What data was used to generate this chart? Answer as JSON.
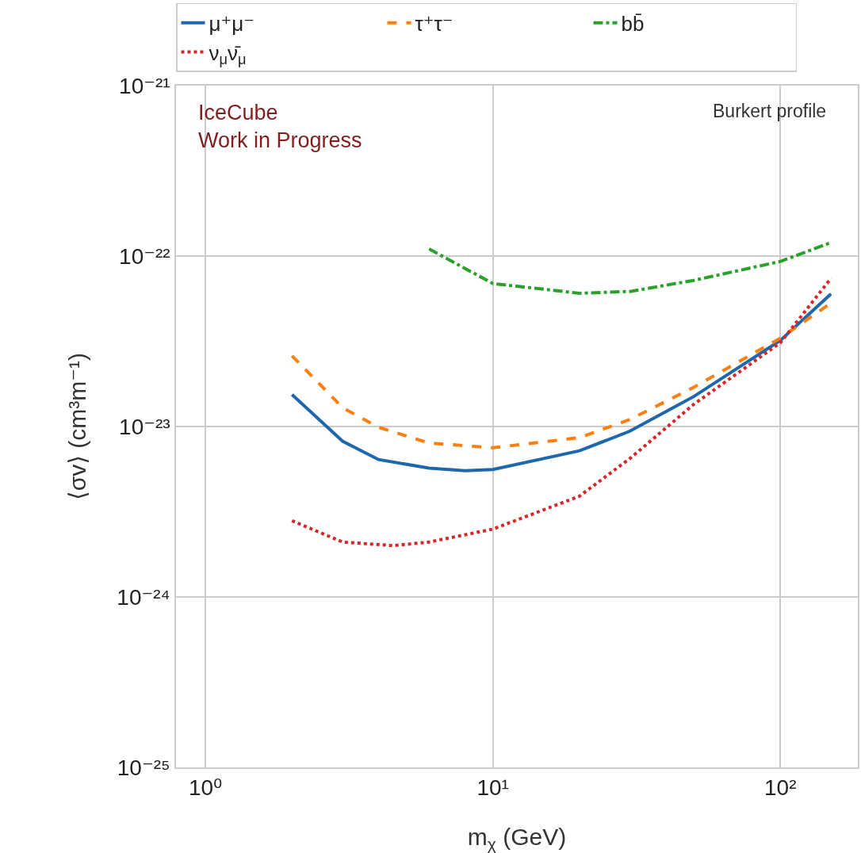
{
  "chart_data": {
    "type": "line",
    "xlabel": "m$_{χ}$ (GeV)",
    "ylabel": "⟨σv⟩ (cm³m⁻¹)",
    "annotations": [
      "IceCube\nWork in Progress",
      "Burkert profile"
    ],
    "log": "xy",
    "grid": true,
    "legend": "top",
    "marker": "none",
    "xlim": [
      0.79,
      186
    ],
    "xticks": [
      {
        "value": 1,
        "label": "10⁰"
      },
      {
        "value": 10,
        "label": "10¹"
      },
      {
        "value": 100,
        "label": "10²"
      }
    ],
    "ylim": [
      1e-25,
      1e-21
    ],
    "yticks": [
      {
        "value": 1e-25,
        "label": "10⁻²⁵"
      },
      {
        "value": 1e-24,
        "label": "10⁻²⁴"
      },
      {
        "value": 1e-23,
        "label": "10⁻²³"
      },
      {
        "value": 1e-22,
        "label": "10⁻²²"
      },
      {
        "value": 1e-21,
        "label": "10⁻²¹"
      }
    ],
    "series": [
      {
        "name": "μ⁺μ⁻",
        "color": "#1f67ac",
        "line_style": "solid",
        "x": [
          2,
          3,
          4,
          6,
          8,
          10,
          20,
          30,
          50,
          100,
          150
        ],
        "values": [
          1.54e-23,
          8.2e-24,
          6.4e-24,
          5.7e-24,
          5.5e-24,
          5.6e-24,
          7.2e-24,
          9.4e-24,
          1.5e-23,
          3.2e-23,
          6e-23
        ]
      },
      {
        "name": "τ⁺τ⁻",
        "color": "#ff7f0e",
        "line_style": "dashed",
        "x": [
          2,
          3,
          4,
          6,
          10,
          20,
          30,
          50,
          100,
          150
        ],
        "values": [
          2.6e-23,
          1.29e-23,
          9.9e-24,
          8e-24,
          7.5e-24,
          8.6e-24,
          1.1e-23,
          1.7e-23,
          3.3e-23,
          5.3e-23
        ]
      },
      {
        "name": "bb̄",
        "color": "#2ca02c",
        "line_style": "dashdot",
        "x": [
          6,
          10,
          20,
          30,
          50,
          100,
          150
        ],
        "values": [
          1.1e-22,
          6.9e-23,
          6.05e-23,
          6.2e-23,
          7.2e-23,
          9.3e-23,
          1.2e-22
        ]
      },
      {
        "name": "ν$_{μ}$ν̄$_{μ}$",
        "color": "#d62728",
        "line_style": "dotted",
        "x": [
          2,
          3,
          4.5,
          6,
          10,
          20,
          30,
          50,
          100,
          150
        ],
        "values": [
          2.8e-24,
          2.1e-24,
          2e-24,
          2.1e-24,
          2.5e-24,
          3.9e-24,
          6.5e-24,
          1.35e-23,
          3.1e-23,
          7.4e-23
        ]
      }
    ]
  }
}
